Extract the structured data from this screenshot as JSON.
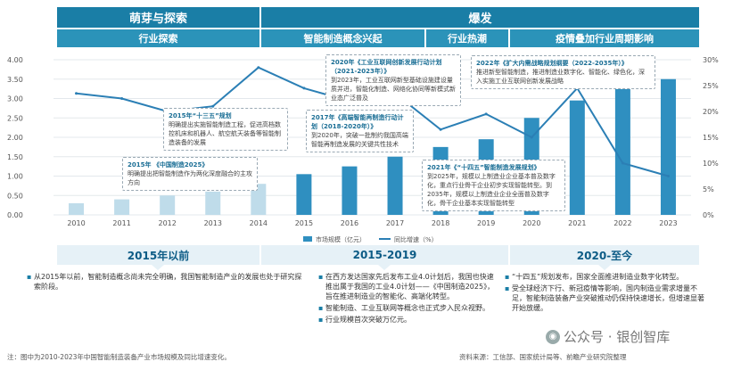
{
  "header": {
    "phase1": "萌芽与探索",
    "phase2": "爆发",
    "sub1": "行业探索",
    "sub2": "智能制造概念兴起",
    "sub3": "行业热潮",
    "sub4": "疫情叠加行业周期影响"
  },
  "chart_data": {
    "type": "bar+line",
    "categories": [
      "2010",
      "2011",
      "2012",
      "2013",
      "2014",
      "2015",
      "2016",
      "2017",
      "2018",
      "2019",
      "2020",
      "2021",
      "2022",
      "2023"
    ],
    "series": [
      {
        "name": "市场规模（亿元）",
        "axis": "left",
        "type": "bar",
        "values": [
          0.3,
          0.4,
          0.5,
          0.6,
          0.8,
          1.05,
          1.25,
          1.5,
          1.75,
          1.95,
          2.5,
          2.95,
          3.25,
          3.5
        ]
      },
      {
        "name": "同比增速（%）",
        "axis": "right",
        "type": "line",
        "values": [
          23.5,
          22.5,
          20.0,
          21.0,
          28.5,
          24.5,
          22.0,
          23.5,
          16.5,
          19.5,
          15.0,
          24.5,
          10.0,
          7.5
        ]
      }
    ],
    "left_ticks": [
      "4.00",
      "3.50",
      "3.00",
      "2.50",
      "2.00",
      "1.50",
      "1.00",
      "0.50",
      "0.00"
    ],
    "right_ticks": [
      "30%",
      "25%",
      "20%",
      "15%",
      "10%",
      "5%",
      "0%"
    ],
    "ylim_left": [
      0,
      4
    ],
    "ylim_right": [
      0,
      30
    ],
    "colors": {
      "bar": "#2f8fc0",
      "bar_light": "#bfdcea",
      "line": "#2b7fb5"
    }
  },
  "legend": {
    "bar": "市场规模（亿元）",
    "line": "同比增速（%）"
  },
  "callouts": [
    {
      "title": "2015年 《中国制造2025》",
      "text": "明确提出把智能制造作为两化深度融合的主攻方向"
    },
    {
      "title": "2015年“十三五”规划",
      "text": "明确提出实施智能制造工程，促进高档数控机床和机器人、航空航天装备等智能制造装备的发展"
    },
    {
      "title": "2017年《高端智能再制造行动计划（2018-2020年）》",
      "text": "到2020年，突破一批制约我国高端智能再制造发展的关键共性技术"
    },
    {
      "title": "2020年《工业互联网创新发展行动计划（2021-2023年）》",
      "text": "到2023年，工业互联网新型基础设施建设量质并进，智能化制造、网络化协同等新模式新业态广泛普及"
    },
    {
      "title": "2022年《扩大内需战略规划纲要（2022-2035年）》",
      "text": "推进新型智能制造，推进制造业数字化、智能化、绿色化，深入实施工业互联网创新发展战略"
    },
    {
      "title": "2021年《“十四五”智能制造发展规划》",
      "text": "到2025年，规模以上制造业企业基本普及数字化，重点行业骨干企业初步实现智能转型。到2035年，规模以上制造业企业全面普及数字化，骨干企业基本实现智能转型"
    }
  ],
  "eras": {
    "e1": "2015年以前",
    "e2": "2015-2019",
    "e3": "2020-至今"
  },
  "columns": {
    "c1": [
      "从2015年以前，智能制造概念尚未完全明确，我国智能制造产业的发展也处于研究探索阶段。"
    ],
    "c2": [
      "在西方发达国家先后发布工业4.0计划后，我国也快速推出属于我国的工业4.0计划——《中国制造2025》，旨在推进制造业的智能化、高端化转型。",
      "智能制造、工业互联网等概念也正式步入民众视野。",
      "行业规模首次突破万亿元。"
    ],
    "c3": [
      "“十四五”规划发布，国家全面推进制造业数字化转型。",
      "受全球经济下行、新冠疫情等影响，国内制造业需求增量不足，智能制造装备产业突破推动仍保持快速增长，但增速显著开始放缓。"
    ]
  },
  "footer": {
    "note": "注：图中为2010-2023年中国智能制造装备产业市场规模及同比增速变化。",
    "source": "资料来源：工信部、国家统计局等、前瞻产业研究院整理",
    "watermark": "公众号 · 银创智库"
  }
}
